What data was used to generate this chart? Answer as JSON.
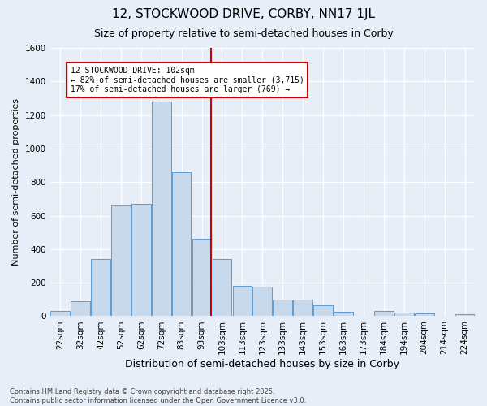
{
  "title": "12, STOCKWOOD DRIVE, CORBY, NN17 1JL",
  "subtitle": "Size of property relative to semi-detached houses in Corby",
  "xlabel": "Distribution of semi-detached houses by size in Corby",
  "ylabel": "Number of semi-detached properties",
  "categories": [
    "22sqm",
    "32sqm",
    "42sqm",
    "52sqm",
    "62sqm",
    "72sqm",
    "83sqm",
    "93sqm",
    "103sqm",
    "113sqm",
    "123sqm",
    "133sqm",
    "143sqm",
    "153sqm",
    "163sqm",
    "173sqm",
    "184sqm",
    "194sqm",
    "204sqm",
    "214sqm",
    "224sqm"
  ],
  "values": [
    30,
    90,
    340,
    660,
    670,
    1280,
    860,
    460,
    340,
    180,
    175,
    100,
    100,
    65,
    25,
    0,
    30,
    20,
    15,
    0,
    10
  ],
  "bar_color": "#c9d9ec",
  "bar_edge_color": "#5b9bd5",
  "vline_color": "#cc0000",
  "annotation_text": "12 STOCKWOOD DRIVE: 102sqm\n← 82% of semi-detached houses are smaller (3,715)\n17% of semi-detached houses are larger (769) →",
  "annotation_box_color": "#ffffff",
  "annotation_edge_color": "#cc0000",
  "ylim": [
    0,
    1600
  ],
  "yticks": [
    0,
    200,
    400,
    600,
    800,
    1000,
    1200,
    1400,
    1600
  ],
  "bg_color": "#e8eef7",
  "footer": "Contains HM Land Registry data © Crown copyright and database right 2025.\nContains public sector information licensed under the Open Government Licence v3.0.",
  "title_fontsize": 11,
  "subtitle_fontsize": 9,
  "ylabel_fontsize": 8,
  "xlabel_fontsize": 9,
  "tick_fontsize": 7.5,
  "footer_fontsize": 6
}
